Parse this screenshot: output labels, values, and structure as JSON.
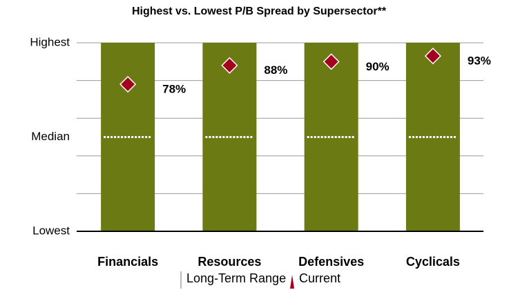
{
  "chart_data": {
    "type": "range_bar",
    "title": "Highest vs. Lowest P/B Spread by Supersector**",
    "categories": [
      "Financials",
      "Resources",
      "Defensives",
      "Cyclicals"
    ],
    "series": [
      {
        "name": "Long-Term Range",
        "color": "#6b7a12",
        "values": [
          100,
          100,
          100,
          100
        ]
      },
      {
        "name": "Current",
        "color": "#a3001e",
        "values": [
          78,
          88,
          90,
          93
        ],
        "value_labels": [
          "78%",
          "88%",
          "90%",
          "93%"
        ]
      }
    ],
    "ylim": [
      0,
      100
    ],
    "yticks": [
      {
        "value": 0,
        "label": "Lowest"
      },
      {
        "value": 50,
        "label": "Median"
      },
      {
        "value": 100,
        "label": "Highest"
      }
    ],
    "grid_lines": [
      0,
      20,
      40,
      60,
      80,
      100
    ],
    "median": 50
  }
}
